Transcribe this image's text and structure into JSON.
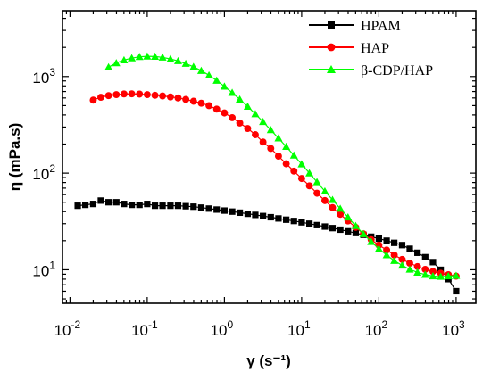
{
  "chart_data": {
    "type": "scatter",
    "xlabel": "γ (s⁻¹)",
    "ylabel": "η (mPa.s)",
    "xscale": "log",
    "yscale": "log",
    "xlim": [
      0.008,
      1800
    ],
    "ylim": [
      4.5,
      4800
    ],
    "xticks": [
      {
        "v": 0.01,
        "base": "10",
        "exp": "-2"
      },
      {
        "v": 0.1,
        "base": "10",
        "exp": "-1"
      },
      {
        "v": 1,
        "base": "10",
        "exp": "0"
      },
      {
        "v": 10,
        "base": "10",
        "exp": "1"
      },
      {
        "v": 100,
        "base": "10",
        "exp": "2"
      },
      {
        "v": 1000,
        "base": "10",
        "exp": "3"
      }
    ],
    "yticks": [
      {
        "v": 10,
        "base": "10",
        "exp": "1"
      },
      {
        "v": 100,
        "base": "10",
        "exp": "2"
      },
      {
        "v": 1000,
        "base": "10",
        "exp": "3"
      }
    ],
    "legend_position": "top-right",
    "series": [
      {
        "name": "HPAM",
        "color": "#000000",
        "marker": "square",
        "x": [
          0.0126,
          0.0158,
          0.02,
          0.0251,
          0.0316,
          0.0398,
          0.0501,
          0.0631,
          0.0794,
          0.1,
          0.126,
          0.158,
          0.2,
          0.251,
          0.316,
          0.398,
          0.501,
          0.631,
          0.794,
          1,
          1.26,
          1.58,
          2,
          2.51,
          3.16,
          3.98,
          5.01,
          6.31,
          7.94,
          10,
          12.6,
          15.8,
          20,
          25.1,
          31.6,
          39.8,
          50.1,
          63.1,
          79.4,
          100,
          126,
          158,
          200,
          251,
          316,
          398,
          501,
          631,
          794,
          1000
        ],
        "y": [
          46,
          47,
          48,
          52,
          50,
          50,
          48,
          47,
          47,
          48,
          46,
          46,
          46,
          46,
          45.5,
          45,
          44,
          43,
          42,
          41,
          40,
          39,
          38,
          37,
          36,
          35,
          34,
          33,
          32,
          31,
          30,
          29,
          28,
          27,
          26,
          25,
          24,
          23,
          22,
          21,
          20,
          19,
          18,
          16.5,
          15,
          13.5,
          12,
          10,
          8,
          6
        ]
      },
      {
        "name": "HAP",
        "color": "#ff0000",
        "marker": "circle",
        "x": [
          0.02,
          0.0251,
          0.0316,
          0.0398,
          0.0501,
          0.0631,
          0.0794,
          0.1,
          0.126,
          0.158,
          0.2,
          0.251,
          0.316,
          0.398,
          0.501,
          0.631,
          0.794,
          1,
          1.26,
          1.58,
          2,
          2.51,
          3.16,
          3.98,
          5.01,
          6.31,
          7.94,
          10,
          12.6,
          15.8,
          20,
          25.1,
          31.6,
          39.8,
          50.1,
          63.1,
          79.4,
          100,
          126,
          158,
          200,
          251,
          316,
          398,
          501,
          631,
          794,
          1000
        ],
        "y": [
          570,
          610,
          635,
          650,
          660,
          662,
          658,
          650,
          640,
          630,
          615,
          600,
          580,
          555,
          530,
          500,
          460,
          420,
          375,
          330,
          290,
          250,
          210,
          180,
          150,
          125,
          105,
          88,
          74,
          62,
          52,
          44,
          37.5,
          32,
          27.5,
          23.5,
          20.5,
          18,
          16,
          14.2,
          12.8,
          11.7,
          10.8,
          10.1,
          9.6,
          9.2,
          8.9,
          8.6
        ]
      },
      {
        "name": "β-CDP/HAP",
        "color": "#00ff00",
        "marker": "triangle",
        "x": [
          0.0316,
          0.0398,
          0.0501,
          0.0631,
          0.0794,
          0.1,
          0.126,
          0.158,
          0.2,
          0.251,
          0.316,
          0.398,
          0.501,
          0.631,
          0.794,
          1,
          1.26,
          1.58,
          2,
          2.51,
          3.16,
          3.98,
          5.01,
          6.31,
          7.94,
          10,
          12.6,
          15.8,
          20,
          25.1,
          31.6,
          39.8,
          50.1,
          63.1,
          79.4,
          100,
          126,
          158,
          200,
          251,
          316,
          398,
          501,
          631,
          794,
          1000
        ],
        "y": [
          1250,
          1380,
          1480,
          1550,
          1600,
          1620,
          1610,
          1580,
          1520,
          1450,
          1360,
          1260,
          1150,
          1030,
          910,
          790,
          680,
          580,
          490,
          410,
          340,
          280,
          230,
          188,
          153,
          124,
          100,
          81,
          65,
          53,
          43,
          35,
          28.5,
          23.5,
          19.5,
          16.5,
          14.2,
          12.4,
          11.1,
          10.1,
          9.4,
          8.9,
          8.6,
          8.5,
          8.6,
          8.7
        ]
      }
    ]
  }
}
